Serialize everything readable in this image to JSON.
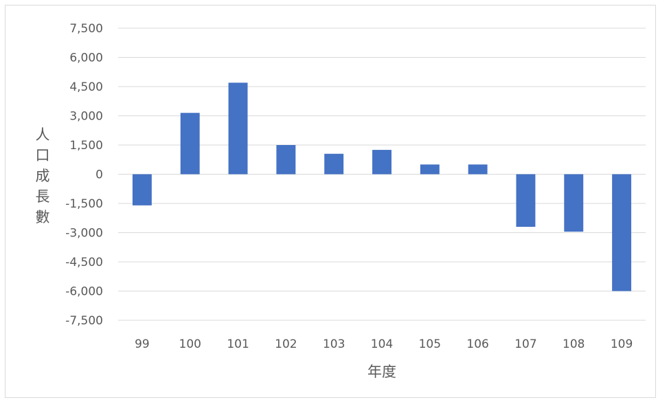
{
  "chart_data": {
    "type": "bar",
    "title": "",
    "xlabel": "年度",
    "ylabel": "人口成長數",
    "categories": [
      "99",
      "100",
      "101",
      "102",
      "103",
      "104",
      "105",
      "106",
      "107",
      "108",
      "109"
    ],
    "series": [
      {
        "values": [
          -1600,
          3150,
          4700,
          1500,
          1050,
          1250,
          500,
          500,
          -2700,
          -2950,
          -6000
        ]
      }
    ],
    "ylim": [
      -7500,
      7500
    ],
    "yticks": [
      7500,
      6000,
      4500,
      3000,
      1500,
      0,
      -1500,
      -3000,
      -4500,
      -6000,
      -7500
    ],
    "ytick_labels": [
      "7,500",
      "6,000",
      "4,500",
      "3,000",
      "1,500",
      "0",
      "-1,500",
      "-3,000",
      "-4,500",
      "-6,000",
      "-7,500"
    ],
    "grid": true,
    "legend": "none",
    "colors": {
      "bar": "#4472c4",
      "grid": "#d9d9d9",
      "text": "#595959"
    }
  }
}
